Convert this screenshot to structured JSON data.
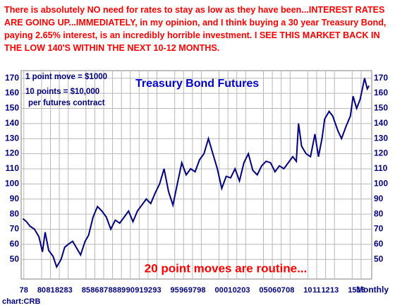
{
  "chart_data": {
    "type": "line",
    "title": "Treasury Bond Futures",
    "headline": "There is absolutely NO need for rates to stay as low as they have been...INTEREST RATES ARE GOING UP...IMMEDIATELY, in my opinion, and I think buying a 30 year Treasury Bond, paying 2.65% interest, is an incredibly horrible investment. I SEE THIS MARKET BACK IN THE LOW 140'S WITHIN THE NEXT 10-12 MONTHS.",
    "annotations": [
      "1 point move = $1000",
      "10 points = $10,000",
      "per futures contract",
      "20 point moves are routine..."
    ],
    "frequency_label": "Monthly",
    "source": "chart:CRB",
    "color": "#000080",
    "grid": true,
    "xlim": [
      1977.7,
      2017.2
    ],
    "ylim": [
      37,
      175
    ],
    "yticks": [
      50,
      60,
      70,
      80,
      90,
      100,
      110,
      120,
      130,
      140,
      150,
      160,
      170
    ],
    "xticks": [
      {
        "value": 1978,
        "label": "78"
      },
      {
        "value": 1980,
        "label": "80"
      },
      {
        "value": 1981,
        "label": "81"
      },
      {
        "value": 1982,
        "label": "82"
      },
      {
        "value": 1983,
        "label": "83"
      },
      {
        "value": 1985,
        "label": "85"
      },
      {
        "value": 1986,
        "label": "86"
      },
      {
        "value": 1987,
        "label": "87"
      },
      {
        "value": 1988,
        "label": "88"
      },
      {
        "value": 1989,
        "label": "89"
      },
      {
        "value": 1990,
        "label": "90"
      },
      {
        "value": 1991,
        "label": "91"
      },
      {
        "value": 1992,
        "label": "92"
      },
      {
        "value": 1993,
        "label": "93"
      },
      {
        "value": 1995,
        "label": "95"
      },
      {
        "value": 1996,
        "label": "96"
      },
      {
        "value": 1997,
        "label": "97"
      },
      {
        "value": 1998,
        "label": "98"
      },
      {
        "value": 2000,
        "label": "00"
      },
      {
        "value": 2001,
        "label": "01"
      },
      {
        "value": 2002,
        "label": "02"
      },
      {
        "value": 2003,
        "label": "03"
      },
      {
        "value": 2005,
        "label": "05"
      },
      {
        "value": 2006,
        "label": "06"
      },
      {
        "value": 2007,
        "label": "07"
      },
      {
        "value": 2008,
        "label": "08"
      },
      {
        "value": 2010,
        "label": "10"
      },
      {
        "value": 2011,
        "label": "11"
      },
      {
        "value": 2012,
        "label": "12"
      },
      {
        "value": 2013,
        "label": "13"
      },
      {
        "value": 2015,
        "label": "15"
      },
      {
        "value": 2016,
        "label": "16"
      }
    ],
    "x": [
      1977.9,
      1978.3,
      1978.7,
      1979.2,
      1979.7,
      1980.1,
      1980.4,
      1980.8,
      1981.3,
      1981.7,
      1982.2,
      1982.6,
      1983,
      1983.5,
      1983.9,
      1984.4,
      1984.9,
      1985.3,
      1985.8,
      1986.3,
      1986.8,
      1987.3,
      1987.8,
      1988.3,
      1988.8,
      1989.3,
      1989.8,
      1990.3,
      1990.8,
      1991.3,
      1991.8,
      1992.3,
      1992.8,
      1993.3,
      1993.8,
      1994.3,
      1994.8,
      1995.3,
      1995.8,
      1996.3,
      1996.8,
      1997.3,
      1997.8,
      1998.3,
      1998.8,
      1999.3,
      1999.8,
      2000.3,
      2000.8,
      2001.3,
      2001.8,
      2002.3,
      2002.8,
      2003.3,
      2003.8,
      2004.3,
      2004.8,
      2005.3,
      2005.8,
      2006.3,
      2006.8,
      2007.3,
      2007.8,
      2008.3,
      2008.7,
      2008.95,
      2009.3,
      2009.8,
      2010.3,
      2010.8,
      2011.2,
      2011.6,
      2011.9,
      2012.4,
      2012.8,
      2013.4,
      2013.8,
      2014.3,
      2014.8,
      2015.1,
      2015.5,
      2015.9,
      2016.4,
      2016.7,
      2016.9
    ],
    "values": [
      77,
      75,
      72,
      70,
      65,
      55,
      68,
      56,
      52,
      45,
      50,
      58,
      60,
      62,
      58,
      53,
      62,
      66,
      78,
      85,
      82,
      78,
      70,
      76,
      74,
      78,
      82,
      75,
      82,
      86,
      90,
      87,
      94,
      100,
      110,
      95,
      86,
      100,
      114,
      106,
      110,
      108,
      116,
      120,
      130,
      120,
      110,
      97,
      105,
      104,
      110,
      102,
      114,
      120,
      109,
      106,
      112,
      115,
      114,
      108,
      112,
      110,
      114,
      118,
      115,
      140,
      125,
      120,
      118,
      133,
      118,
      130,
      143,
      148,
      145,
      135,
      130,
      138,
      145,
      158,
      150,
      156,
      170,
      163,
      165
    ]
  }
}
